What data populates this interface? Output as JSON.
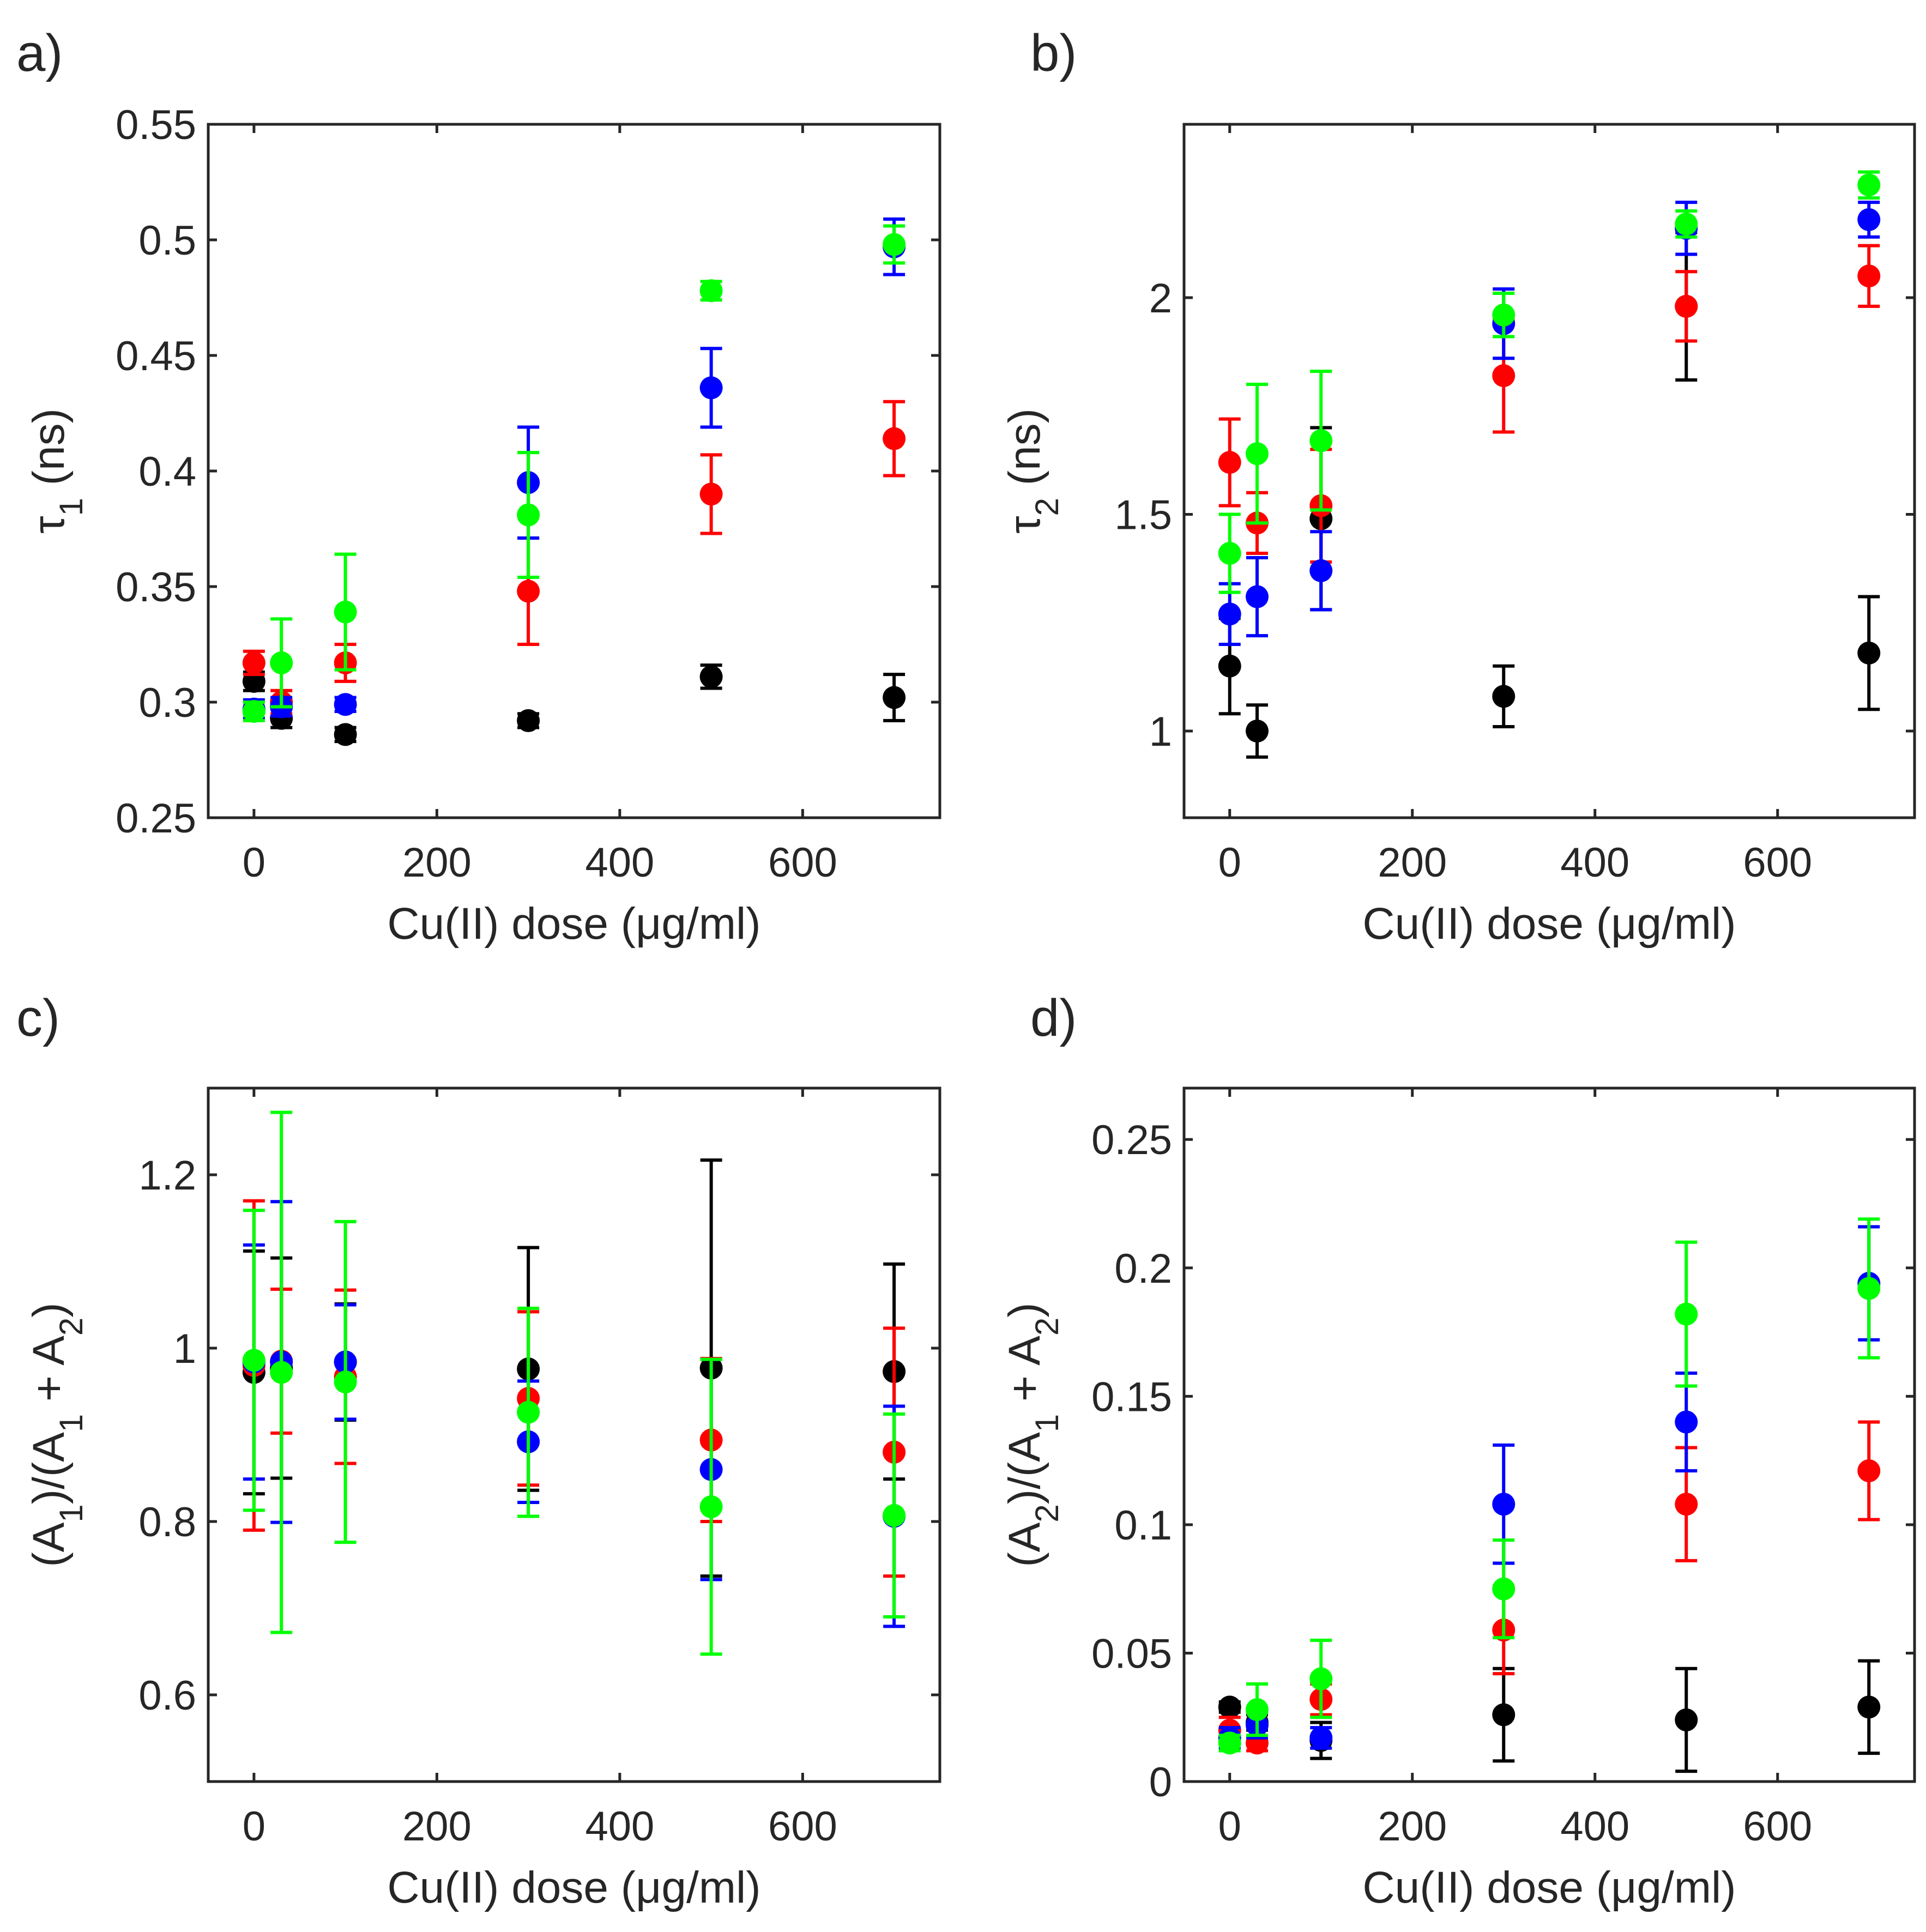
{
  "chart_data": [
    {
      "id": "a",
      "type": "scatter",
      "panel_label": "a)",
      "xlabel": "Cu(II) dose (μg/ml)",
      "ylabel": "τ₁ (ns)",
      "xlim": [
        -50,
        750
      ],
      "ylim": [
        0.25,
        0.55
      ],
      "xticks": [
        "0",
        "200",
        "400",
        "600"
      ],
      "xtick_values": [
        0,
        200,
        400,
        600
      ],
      "yticks": [
        "0.25",
        "0.3",
        "0.35",
        "0.4",
        "0.45",
        "0.5",
        "0.55"
      ],
      "ytick_values": [
        0.25,
        0.3,
        0.35,
        0.4,
        0.45,
        0.5,
        0.55
      ],
      "grid": false,
      "series": [
        {
          "name": "black",
          "color": "#000000",
          "x": [
            0,
            30,
            100,
            300,
            500,
            700
          ],
          "y": [
            0.309,
            0.293,
            0.286,
            0.292,
            0.311,
            0.302
          ],
          "err": [
            0.004,
            0.004,
            0.003,
            0.003,
            0.005,
            0.01
          ]
        },
        {
          "name": "red",
          "color": "#ff0000",
          "x": [
            0,
            30,
            100,
            300,
            500,
            700
          ],
          "y": [
            0.317,
            0.3,
            0.317,
            0.348,
            0.39,
            0.414
          ],
          "err": [
            0.005,
            0.005,
            0.008,
            0.023,
            0.017,
            0.016
          ]
        },
        {
          "name": "blue",
          "color": "#0000ff",
          "x": [
            0,
            30,
            100,
            300,
            500,
            700
          ],
          "y": [
            0.297,
            0.298,
            0.299,
            0.395,
            0.436,
            0.497
          ],
          "err": [
            0.004,
            0.004,
            0.003,
            0.024,
            0.017,
            0.012
          ]
        },
        {
          "name": "green",
          "color": "#00ff00",
          "x": [
            0,
            30,
            100,
            300,
            500,
            700
          ],
          "y": [
            0.296,
            0.317,
            0.339,
            0.381,
            0.478,
            0.498
          ],
          "err": [
            0.004,
            0.019,
            0.025,
            0.027,
            0.004,
            0.008
          ]
        }
      ]
    },
    {
      "id": "b",
      "type": "scatter",
      "panel_label": "b)",
      "xlabel": "Cu(II) dose (μg/ml)",
      "ylabel": "τ₂ (ns)",
      "xlim": [
        -50,
        750
      ],
      "ylim": [
        0.8,
        2.4
      ],
      "xticks": [
        "0",
        "200",
        "400",
        "600"
      ],
      "xtick_values": [
        0,
        200,
        400,
        600
      ],
      "yticks": [
        "1",
        "1.5",
        "2"
      ],
      "ytick_values": [
        1,
        1.5,
        2
      ],
      "grid": false,
      "series": [
        {
          "name": "black",
          "color": "#000000",
          "x": [
            0,
            30,
            100,
            300,
            500,
            700
          ],
          "y": [
            1.15,
            1.0,
            1.49,
            1.08,
            1.98,
            1.18
          ],
          "err": [
            0.11,
            0.06,
            0.21,
            0.07,
            0.17,
            0.13
          ]
        },
        {
          "name": "red",
          "color": "#ff0000",
          "x": [
            0,
            30,
            100,
            300,
            500,
            700
          ],
          "y": [
            1.62,
            1.48,
            1.52,
            1.82,
            1.98,
            2.05
          ],
          "err": [
            0.1,
            0.07,
            0.13,
            0.13,
            0.08,
            0.07
          ]
        },
        {
          "name": "blue",
          "color": "#0000ff",
          "x": [
            0,
            30,
            100,
            300,
            500,
            700
          ],
          "y": [
            1.27,
            1.31,
            1.37,
            1.94,
            2.16,
            2.18
          ],
          "err": [
            0.07,
            0.09,
            0.09,
            0.08,
            0.06,
            0.04
          ]
        },
        {
          "name": "green",
          "color": "#00ff00",
          "x": [
            0,
            30,
            100,
            300,
            500,
            700
          ],
          "y": [
            1.41,
            1.64,
            1.67,
            1.96,
            2.17,
            2.26
          ],
          "err": [
            0.09,
            0.16,
            0.16,
            0.05,
            0.03,
            0.03
          ]
        }
      ]
    },
    {
      "id": "c",
      "type": "scatter",
      "panel_label": "c)",
      "xlabel": "Cu(II) dose (μg/ml)",
      "ylabel": "(A₁)/(A₁ + A₂)",
      "xlim": [
        -50,
        750
      ],
      "ylim": [
        0.5,
        1.3
      ],
      "xticks": [
        "0",
        "200",
        "400",
        "600"
      ],
      "xtick_values": [
        0,
        200,
        400,
        600
      ],
      "yticks": [
        "0.6",
        "0.8",
        "1",
        "1.2"
      ],
      "ytick_values": [
        0.6,
        0.8,
        1,
        1.2
      ],
      "grid": false,
      "series": [
        {
          "name": "black",
          "color": "#000000",
          "x": [
            0,
            30,
            100,
            300,
            500,
            700
          ],
          "y": [
            0.972,
            0.977,
            0.984,
            0.976,
            0.977,
            0.973
          ],
          "err": [
            0.14,
            0.127,
            0.067,
            0.14,
            0.24,
            0.124
          ]
        },
        {
          "name": "red",
          "color": "#ff0000",
          "x": [
            0,
            30,
            100,
            300,
            500,
            700
          ],
          "y": [
            0.98,
            0.985,
            0.967,
            0.942,
            0.894,
            0.88
          ],
          "err": [
            0.19,
            0.083,
            0.1,
            0.1,
            0.094,
            0.143
          ]
        },
        {
          "name": "blue",
          "color": "#0000ff",
          "x": [
            0,
            30,
            100,
            300,
            500,
            700
          ],
          "y": [
            0.984,
            0.984,
            0.984,
            0.892,
            0.86,
            0.806
          ],
          "err": [
            0.135,
            0.185,
            0.066,
            0.07,
            0.127,
            0.127
          ]
        },
        {
          "name": "green",
          "color": "#00ff00",
          "x": [
            0,
            30,
            100,
            300,
            500,
            700
          ],
          "y": [
            0.986,
            0.972,
            0.961,
            0.926,
            0.817,
            0.807
          ],
          "err": [
            0.173,
            0.3,
            0.185,
            0.12,
            0.17,
            0.117
          ]
        }
      ]
    },
    {
      "id": "d",
      "type": "scatter",
      "panel_label": "d)",
      "xlabel": "Cu(II) dose (μg/ml)",
      "ylabel": "(A₂)/(A₁ + A₂)",
      "xlim": [
        -50,
        750
      ],
      "ylim": [
        0,
        0.27
      ],
      "xticks": [
        "0",
        "200",
        "400",
        "600"
      ],
      "xtick_values": [
        0,
        200,
        400,
        600
      ],
      "yticks": [
        "0",
        "0.05",
        "0.1",
        "0.15",
        "0.2",
        "0.25"
      ],
      "ytick_values": [
        0,
        0.05,
        0.1,
        0.15,
        0.2,
        0.25
      ],
      "grid": false,
      "series": [
        {
          "name": "black",
          "color": "#000000",
          "x": [
            0,
            30,
            100,
            300,
            500,
            700
          ],
          "y": [
            0.029,
            0.023,
            0.016,
            0.026,
            0.024,
            0.029
          ],
          "err": [
            0.002,
            0.003,
            0.007,
            0.018,
            0.02,
            0.018
          ]
        },
        {
          "name": "red",
          "color": "#ff0000",
          "x": [
            0,
            30,
            100,
            300,
            500,
            700
          ],
          "y": [
            0.02,
            0.015,
            0.032,
            0.059,
            0.108,
            0.121
          ],
          "err": [
            0.005,
            0.003,
            0.006,
            0.017,
            0.022,
            0.019
          ]
        },
        {
          "name": "blue",
          "color": "#0000ff",
          "x": [
            0,
            30,
            100,
            300,
            500,
            700
          ],
          "y": [
            0.017,
            0.022,
            0.017,
            0.108,
            0.14,
            0.194
          ],
          "err": [
            0.004,
            0.005,
            0.004,
            0.023,
            0.019,
            0.022
          ]
        },
        {
          "name": "green",
          "color": "#00ff00",
          "x": [
            0,
            30,
            100,
            300,
            500,
            700
          ],
          "y": [
            0.015,
            0.028,
            0.04,
            0.075,
            0.182,
            0.192
          ],
          "err": [
            0.003,
            0.01,
            0.015,
            0.019,
            0.028,
            0.027
          ]
        }
      ]
    }
  ]
}
